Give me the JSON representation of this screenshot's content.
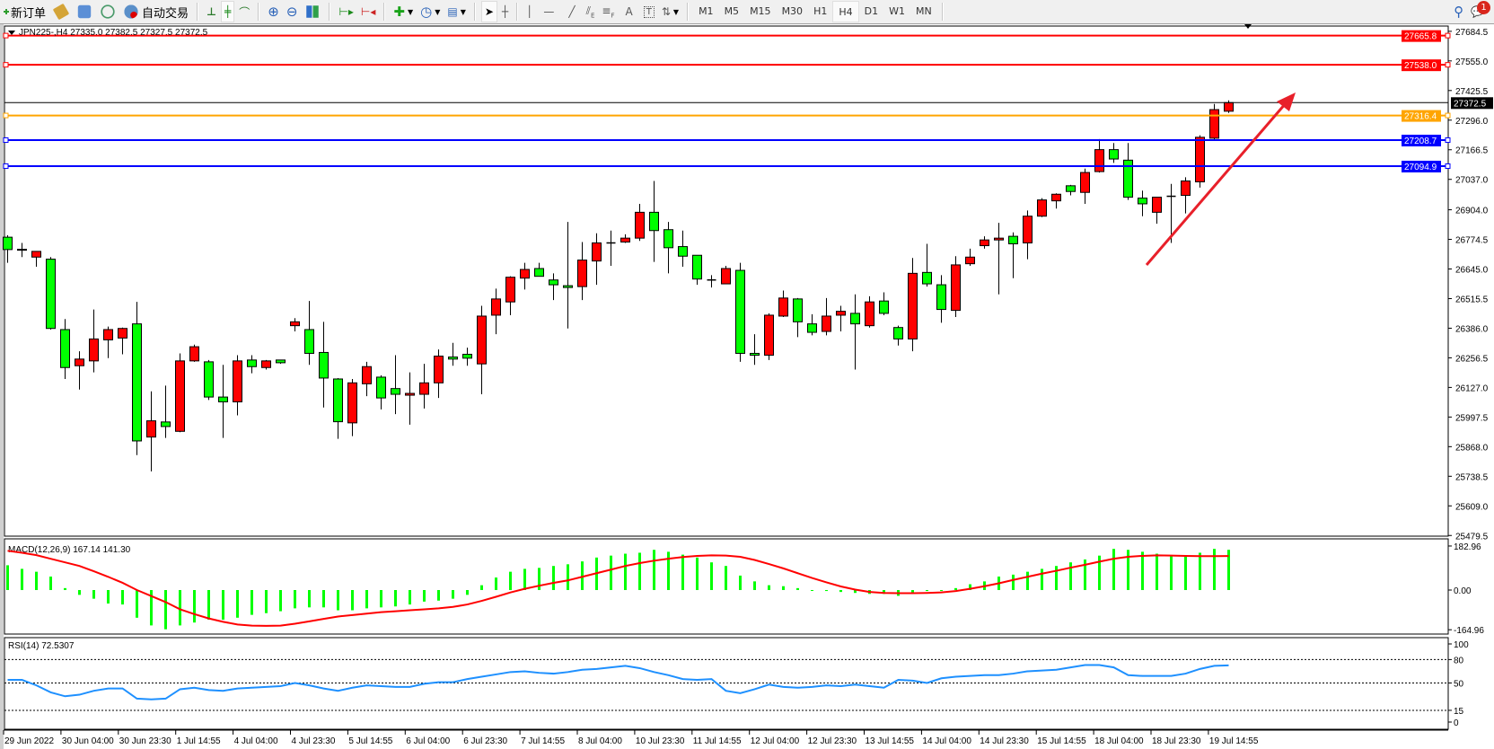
{
  "toolbar": {
    "new_order": "新订单",
    "auto_trading": "自动交易",
    "timeframes": [
      "M1",
      "M5",
      "M15",
      "M30",
      "H1",
      "H4",
      "D1",
      "W1",
      "MN"
    ],
    "active_timeframe": "H4",
    "notification_count": "1"
  },
  "chart": {
    "header": "JPN225-,H4  27335.0 27382.5 27327.5 27372.5",
    "colors": {
      "bull": "#ff0000",
      "bear": "#00ff00",
      "wick": "#000000",
      "macd_hist": "#00ff00",
      "macd_signal": "#ff0000",
      "rsi": "#1e90ff",
      "arrow": "#e8202a"
    },
    "price_ticks": [
      "27684.5",
      "27555.0",
      "27425.5",
      "27296.0",
      "27166.5",
      "27037.0",
      "26904.0",
      "26774.5",
      "26645.0",
      "26515.5",
      "26386.0",
      "26256.5",
      "26127.0",
      "25997.5",
      "25868.0",
      "25738.5",
      "25609.0",
      "25479.5"
    ],
    "levels": [
      {
        "price": 27665.8,
        "label": "27665.8",
        "color": "#ff0000"
      },
      {
        "price": 27538.0,
        "label": "27538.0",
        "color": "#ff0000"
      },
      {
        "price": 27372.5,
        "label": "27372.5",
        "color": "#000000"
      },
      {
        "price": 27316.4,
        "label": "27316.4",
        "color": "#ffa500"
      },
      {
        "price": 27208.7,
        "label": "27208.7",
        "color": "#0000ff"
      },
      {
        "price": 27094.9,
        "label": "27094.9",
        "color": "#0000ff"
      }
    ],
    "time_labels": [
      "29 Jun 2022",
      "30 Jun 04:00",
      "30 Jun 23:30",
      "1 Jul 14:55",
      "4 Jul 04:00",
      "4 Jul 23:30",
      "5 Jul 14:55",
      "6 Jul 04:00",
      "6 Jul 23:30",
      "7 Jul 14:55",
      "8 Jul 04:00",
      "10 Jul 23:30",
      "11 Jul 14:55",
      "12 Jul 04:00",
      "12 Jul 23:30",
      "13 Jul 14:55",
      "14 Jul 04:00",
      "14 Jul 23:30",
      "15 Jul 14:55",
      "18 Jul 04:00",
      "18 Jul 23:30",
      "19 Jul 14:55"
    ]
  },
  "chart_data": {
    "type": "candlestick",
    "ohlc": [
      [
        26784,
        26793,
        26672,
        26730
      ],
      [
        26731,
        26759,
        26697,
        26730
      ],
      [
        26697,
        26722,
        26655,
        26722
      ],
      [
        26688,
        26697,
        26380,
        26385
      ],
      [
        26380,
        26426,
        26164,
        26214
      ],
      [
        26222,
        26285,
        26118,
        26251
      ],
      [
        26243,
        26468,
        26193,
        26339
      ],
      [
        26335,
        26393,
        26255,
        26380
      ],
      [
        26343,
        26389,
        26272,
        26385
      ],
      [
        26405,
        26501,
        25831,
        25893
      ],
      [
        25910,
        26110,
        25760,
        25981
      ],
      [
        25976,
        26135,
        25906,
        25956
      ],
      [
        25935,
        26276,
        25931,
        26243
      ],
      [
        26243,
        26314,
        26239,
        26305
      ],
      [
        26239,
        26247,
        26072,
        26085
      ],
      [
        26085,
        26226,
        25906,
        26064
      ],
      [
        26064,
        26268,
        26005,
        26243
      ],
      [
        26247,
        26268,
        26189,
        26218
      ],
      [
        26214,
        26247,
        26205,
        26243
      ],
      [
        26247,
        26247,
        26230,
        26235
      ],
      [
        26397,
        26430,
        26372,
        26414
      ],
      [
        26380,
        26505,
        26226,
        26276
      ],
      [
        26280,
        26414,
        26039,
        26168
      ],
      [
        26164,
        26168,
        25902,
        25977
      ],
      [
        25972,
        26164,
        25914,
        26147
      ],
      [
        26143,
        26239,
        26089,
        26218
      ],
      [
        26172,
        26180,
        26031,
        26081
      ],
      [
        26122,
        26268,
        26010,
        26097
      ],
      [
        26093,
        26193,
        25964,
        26101
      ],
      [
        26097,
        26230,
        26035,
        26147
      ],
      [
        26147,
        26293,
        26081,
        26264
      ],
      [
        26260,
        26322,
        26222,
        26251
      ],
      [
        26272,
        26301,
        26222,
        26255
      ],
      [
        26230,
        26484,
        26097,
        26439
      ],
      [
        26443,
        26559,
        26360,
        26514
      ],
      [
        26501,
        26613,
        26443,
        26609
      ],
      [
        26605,
        26672,
        26555,
        26643
      ],
      [
        26647,
        26672,
        26613,
        26613
      ],
      [
        26597,
        26626,
        26509,
        26576
      ],
      [
        26572,
        26851,
        26385,
        26564
      ],
      [
        26568,
        26763,
        26509,
        26684
      ],
      [
        26680,
        26801,
        26576,
        26759
      ],
      [
        26759,
        26813,
        26659,
        26759
      ],
      [
        26763,
        26797,
        26759,
        26780
      ],
      [
        26780,
        26930,
        26768,
        26893
      ],
      [
        26893,
        27030,
        26676,
        26813
      ],
      [
        26817,
        26851,
        26626,
        26738
      ],
      [
        26743,
        26813,
        26655,
        26701
      ],
      [
        26705,
        26705,
        26576,
        26601
      ],
      [
        26597,
        26618,
        26564,
        26597
      ],
      [
        26580,
        26659,
        26580,
        26647
      ],
      [
        26639,
        26672,
        26239,
        26276
      ],
      [
        26276,
        26360,
        26226,
        26268
      ],
      [
        26268,
        26451,
        26247,
        26443
      ],
      [
        26439,
        26551,
        26435,
        26518
      ],
      [
        26514,
        26518,
        26347,
        26414
      ],
      [
        26405,
        26447,
        26355,
        26368
      ],
      [
        26372,
        26518,
        26355,
        26439
      ],
      [
        26443,
        26484,
        26372,
        26460
      ],
      [
        26451,
        26534,
        26205,
        26405
      ],
      [
        26397,
        26526,
        26389,
        26501
      ],
      [
        26505,
        26543,
        26443,
        26451
      ],
      [
        26389,
        26397,
        26310,
        26339
      ],
      [
        26339,
        26693,
        26285,
        26626
      ],
      [
        26630,
        26755,
        26568,
        26580
      ],
      [
        26576,
        26618,
        26410,
        26468
      ],
      [
        26464,
        26701,
        26435,
        26663
      ],
      [
        26668,
        26734,
        26659,
        26697
      ],
      [
        26747,
        26788,
        26734,
        26772
      ],
      [
        26772,
        26847,
        26534,
        26780
      ],
      [
        26788,
        26805,
        26605,
        26755
      ],
      [
        26759,
        26901,
        26688,
        26876
      ],
      [
        26876,
        26955,
        26872,
        26947
      ],
      [
        26943,
        26976,
        26909,
        26972
      ],
      [
        27009,
        27013,
        26967,
        26984
      ],
      [
        26980,
        27084,
        26930,
        27067
      ],
      [
        27071,
        27213,
        27067,
        27167
      ],
      [
        27167,
        27196,
        27109,
        27126
      ],
      [
        27121,
        27196,
        26947,
        26959
      ],
      [
        26955,
        26988,
        26876,
        26930
      ],
      [
        26893,
        26959,
        26843,
        26959
      ],
      [
        26963,
        27017,
        26759,
        26963
      ],
      [
        26967,
        27046,
        26888,
        27030
      ],
      [
        27026,
        27230,
        27001,
        27221
      ],
      [
        27217,
        27367,
        27205,
        27342
      ],
      [
        27335,
        27382.5,
        27327.5,
        27372.5
      ]
    ],
    "price_range": [
      25479.5,
      27684.5
    ],
    "macd": {
      "label": "MACD(12,26,9) 167.14 141.30",
      "ticks": [
        "182.96",
        "0.00",
        "-164.96"
      ],
      "histogram": [
        103,
        88,
        76,
        56,
        8,
        -20,
        -36,
        -56,
        -60,
        -115,
        -147,
        -163,
        -147,
        -135,
        -123,
        -123,
        -115,
        -103,
        -96,
        -88,
        -76,
        -72,
        -72,
        -84,
        -84,
        -76,
        -72,
        -68,
        -60,
        -48,
        -44,
        -36,
        -20,
        20,
        52,
        76,
        88,
        92,
        100,
        107,
        119,
        135,
        143,
        151,
        155,
        167,
        159,
        147,
        135,
        115,
        100,
        60,
        36,
        20,
        16,
        8,
        0,
        -4,
        -8,
        -12,
        -16,
        -16,
        -24,
        -12,
        -4,
        -4,
        8,
        24,
        36,
        56,
        64,
        76,
        88,
        100,
        115,
        127,
        143,
        171,
        167,
        159,
        151,
        143,
        139,
        155,
        171,
        167.14
      ],
      "signal": [
        163,
        155,
        145,
        130,
        115,
        100,
        78,
        55,
        30,
        0,
        -25,
        -50,
        -80,
        -100,
        -118,
        -132,
        -143,
        -148,
        -149,
        -148,
        -140,
        -130,
        -120,
        -110,
        -104,
        -98,
        -92,
        -88,
        -84,
        -80,
        -76,
        -70,
        -60,
        -45,
        -28,
        -10,
        5,
        18,
        30,
        40,
        55,
        70,
        85,
        100,
        112,
        122,
        130,
        137,
        142,
        144,
        143,
        138,
        125,
        108,
        90,
        70,
        50,
        32,
        15,
        2,
        -8,
        -12,
        -13,
        -13,
        -12,
        -10,
        -4,
        5,
        16,
        28,
        42,
        55,
        68,
        80,
        93,
        105,
        118,
        130,
        138,
        142,
        144,
        143,
        142,
        141,
        141,
        141.3
      ]
    },
    "rsi": {
      "label": "RSI(14) 72.5307",
      "ticks": [
        "100",
        "80",
        "50",
        "15",
        "0"
      ],
      "levels": [
        80,
        50,
        15
      ],
      "values": [
        54,
        54,
        47,
        38,
        33,
        35,
        40,
        43,
        43,
        30,
        29,
        30,
        42,
        44,
        41,
        40,
        43,
        44,
        45,
        46,
        50,
        47,
        43,
        40,
        44,
        47,
        46,
        45,
        45,
        49,
        51,
        51,
        55,
        58,
        61,
        64,
        65,
        63,
        62,
        64,
        67,
        68,
        70,
        72,
        69,
        64,
        60,
        55,
        54,
        55,
        40,
        37,
        42,
        48,
        45,
        44,
        45,
        47,
        46,
        48,
        46,
        44,
        54,
        53,
        50,
        56,
        58,
        59,
        60,
        60,
        62,
        65,
        66,
        67,
        70,
        73,
        73,
        70,
        60,
        59,
        59,
        59,
        62,
        68,
        72,
        72.53
      ]
    }
  }
}
